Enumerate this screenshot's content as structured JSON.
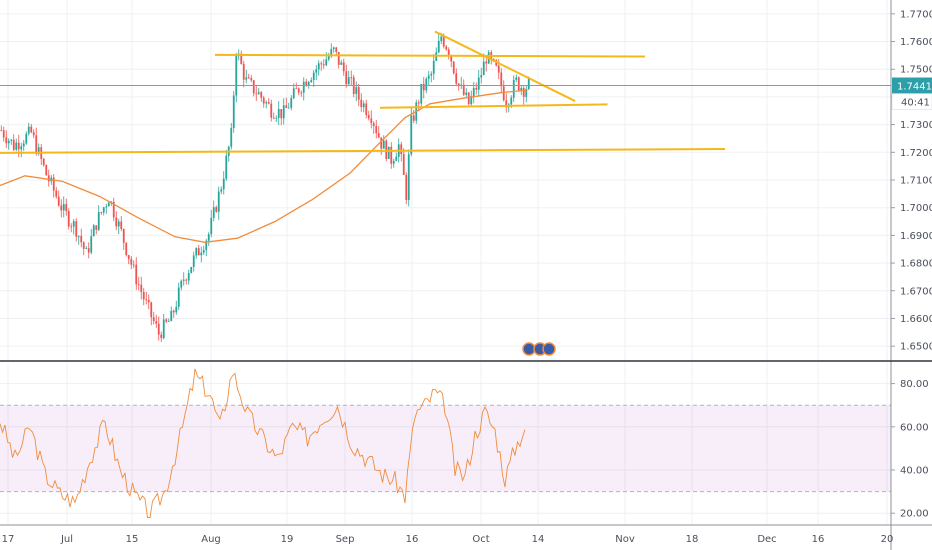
{
  "chart_data": [
    {
      "type": "candlestick",
      "ylim": [
        1.645,
        1.775
      ],
      "y_ticks": [
        "1.77000",
        "1.76000",
        "1.75000",
        "1.74000",
        "1.73000",
        "1.72000",
        "1.71000",
        "1.70000",
        "1.69000",
        "1.68000",
        "1.67000",
        "1.66000",
        "1.65000"
      ],
      "x_ticks": [
        "17",
        "Jul",
        "15",
        "Aug",
        "19",
        "Sep",
        "16",
        "Oct",
        "14",
        "Nov",
        "18",
        "Dec",
        "16",
        "20"
      ],
      "last_price": "1.74412",
      "countdown": "40:41",
      "moving_average": [
        {
          "t": 0,
          "y": 1.708
        },
        {
          "t": 10,
          "y": 1.7115
        },
        {
          "t": 25,
          "y": 1.7095
        },
        {
          "t": 40,
          "y": 1.704
        },
        {
          "t": 55,
          "y": 1.6965
        },
        {
          "t": 70,
          "y": 1.6895
        },
        {
          "t": 82,
          "y": 1.6875
        },
        {
          "t": 95,
          "y": 1.689
        },
        {
          "t": 110,
          "y": 1.695
        },
        {
          "t": 125,
          "y": 1.703
        },
        {
          "t": 140,
          "y": 1.7125
        },
        {
          "t": 152,
          "y": 1.7235
        },
        {
          "t": 162,
          "y": 1.7325
        },
        {
          "t": 172,
          "y": 1.7375
        },
        {
          "t": 185,
          "y": 1.7395
        },
        {
          "t": 200,
          "y": 1.7415
        },
        {
          "t": 211,
          "y": 1.7425
        }
      ],
      "price_path": [
        {
          "t": 0,
          "y": 1.728
        },
        {
          "t": 5,
          "y": 1.7225
        },
        {
          "t": 12,
          "y": 1.727
        },
        {
          "t": 18,
          "y": 1.712
        },
        {
          "t": 25,
          "y": 1.6985
        },
        {
          "t": 30,
          "y": 1.6925
        },
        {
          "t": 34,
          "y": 1.683
        },
        {
          "t": 38,
          "y": 1.6945
        },
        {
          "t": 43,
          "y": 1.704
        },
        {
          "t": 48,
          "y": 1.691
        },
        {
          "t": 53,
          "y": 1.677
        },
        {
          "t": 58,
          "y": 1.665
        },
        {
          "t": 63,
          "y": 1.6545
        },
        {
          "t": 68,
          "y": 1.66
        },
        {
          "t": 73,
          "y": 1.6745
        },
        {
          "t": 78,
          "y": 1.683
        },
        {
          "t": 83,
          "y": 1.6905
        },
        {
          "t": 88,
          "y": 1.708
        },
        {
          "t": 92,
          "y": 1.726
        },
        {
          "t": 94,
          "y": 1.757
        },
        {
          "t": 98,
          "y": 1.7455
        },
        {
          "t": 103,
          "y": 1.741
        },
        {
          "t": 108,
          "y": 1.7355
        },
        {
          "t": 113,
          "y": 1.734
        },
        {
          "t": 118,
          "y": 1.742
        },
        {
          "t": 123,
          "y": 1.7475
        },
        {
          "t": 128,
          "y": 1.752
        },
        {
          "t": 133,
          "y": 1.7565
        },
        {
          "t": 138,
          "y": 1.7475
        },
        {
          "t": 143,
          "y": 1.7395
        },
        {
          "t": 148,
          "y": 1.7335
        },
        {
          "t": 152,
          "y": 1.7235
        },
        {
          "t": 156,
          "y": 1.7175
        },
        {
          "t": 159,
          "y": 1.7225
        },
        {
          "t": 162,
          "y": 1.705
        },
        {
          "t": 164,
          "y": 1.7305
        },
        {
          "t": 168,
          "y": 1.742
        },
        {
          "t": 172,
          "y": 1.748
        },
        {
          "t": 176,
          "y": 1.762
        },
        {
          "t": 179,
          "y": 1.757
        },
        {
          "t": 183,
          "y": 1.744
        },
        {
          "t": 187,
          "y": 1.7375
        },
        {
          "t": 191,
          "y": 1.7455
        },
        {
          "t": 194,
          "y": 1.7545
        },
        {
          "t": 198,
          "y": 1.7495
        },
        {
          "t": 202,
          "y": 1.7385
        },
        {
          "t": 206,
          "y": 1.7455
        },
        {
          "t": 209,
          "y": 1.743
        },
        {
          "t": 211,
          "y": 1.7445
        }
      ],
      "trend_lines": [
        {
          "from": {
            "t": 86,
            "y": 1.7552
          },
          "to": {
            "t": 258,
            "y": 1.7546
          }
        },
        {
          "from": {
            "t": 0,
            "y": 1.7198
          },
          "to": {
            "t": 290,
            "y": 1.7212
          }
        },
        {
          "from": {
            "t": 152,
            "y": 1.7361
          },
          "to": {
            "t": 243,
            "y": 1.7373
          }
        },
        {
          "from": {
            "t": 174,
            "y": 1.7636
          },
          "to": {
            "t": 230,
            "y": 1.7385
          }
        }
      ]
    },
    {
      "type": "line",
      "ylim": [
        15,
        90
      ],
      "y_ticks": [
        "80.00",
        "60.00",
        "40.00",
        "20.00"
      ],
      "band": [
        30,
        70
      ],
      "values": [
        {
          "t": 0,
          "y": 63
        },
        {
          "t": 6,
          "y": 45
        },
        {
          "t": 12,
          "y": 60
        },
        {
          "t": 18,
          "y": 38
        },
        {
          "t": 24,
          "y": 29
        },
        {
          "t": 30,
          "y": 25
        },
        {
          "t": 36,
          "y": 45
        },
        {
          "t": 42,
          "y": 62
        },
        {
          "t": 48,
          "y": 40
        },
        {
          "t": 54,
          "y": 28
        },
        {
          "t": 60,
          "y": 20
        },
        {
          "t": 66,
          "y": 30
        },
        {
          "t": 72,
          "y": 55
        },
        {
          "t": 78,
          "y": 84
        },
        {
          "t": 84,
          "y": 75
        },
        {
          "t": 88,
          "y": 60
        },
        {
          "t": 93,
          "y": 86
        },
        {
          "t": 99,
          "y": 66
        },
        {
          "t": 105,
          "y": 55
        },
        {
          "t": 111,
          "y": 45
        },
        {
          "t": 117,
          "y": 60
        },
        {
          "t": 123,
          "y": 55
        },
        {
          "t": 129,
          "y": 64
        },
        {
          "t": 135,
          "y": 70
        },
        {
          "t": 141,
          "y": 52
        },
        {
          "t": 147,
          "y": 45
        },
        {
          "t": 153,
          "y": 38
        },
        {
          "t": 158,
          "y": 35
        },
        {
          "t": 162,
          "y": 28
        },
        {
          "t": 166,
          "y": 66
        },
        {
          "t": 170,
          "y": 70
        },
        {
          "t": 174,
          "y": 76
        },
        {
          "t": 178,
          "y": 70
        },
        {
          "t": 182,
          "y": 40
        },
        {
          "t": 186,
          "y": 37
        },
        {
          "t": 190,
          "y": 56
        },
        {
          "t": 194,
          "y": 67
        },
        {
          "t": 198,
          "y": 58
        },
        {
          "t": 202,
          "y": 36
        },
        {
          "t": 206,
          "y": 50
        },
        {
          "t": 210,
          "y": 60
        }
      ]
    }
  ]
}
